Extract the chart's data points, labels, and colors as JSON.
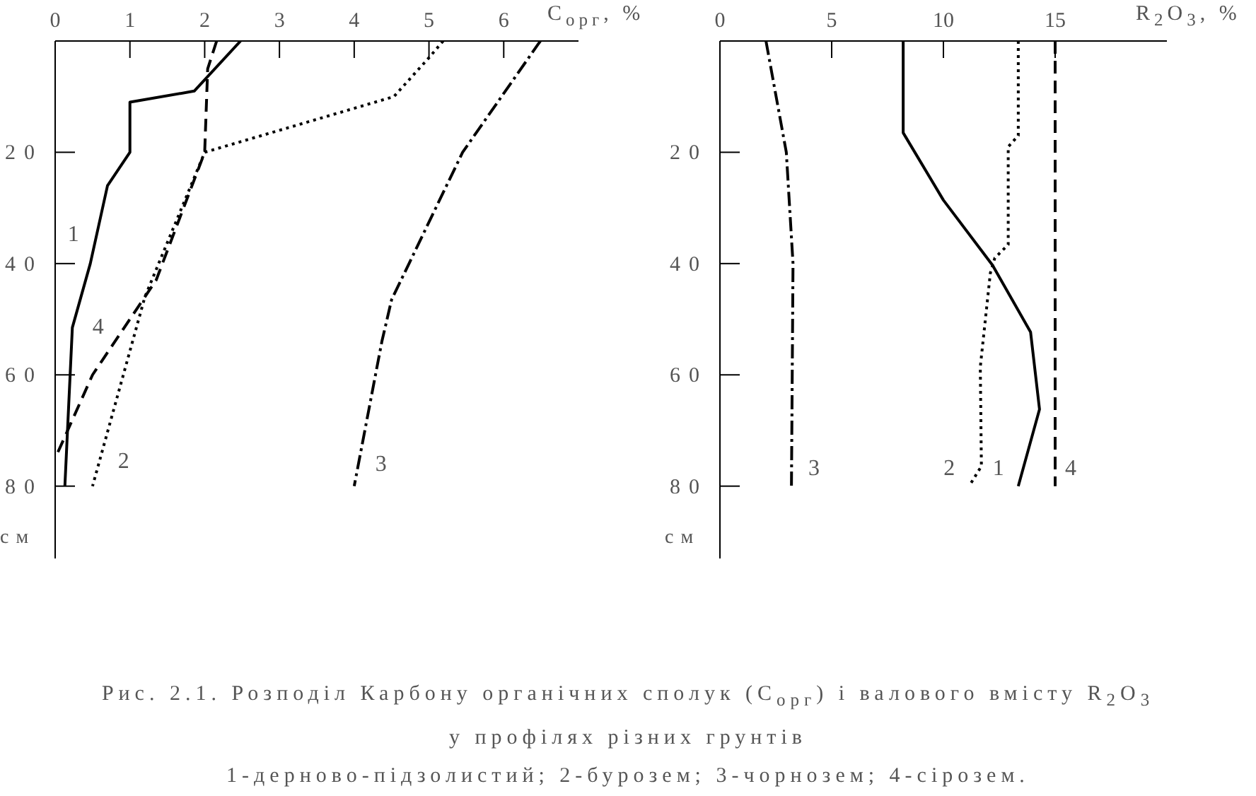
{
  "chart_data": [
    {
      "type": "line",
      "title": "Рис. 2.1. Розподіл Карбону органічних сполук (C$_{орг}$) і валового вмісту R$_{2}$O$_{3}$",
      "subtitle": "у профілях різних грунтів",
      "annotations": [
        "1-дерново-підзолистий; 2-бурозем; 3-чорнозем; 4-сірозем."
      ],
      "xlabel": "C$_{орг}$, %",
      "ylabel": "см",
      "xlim": [
        0,
        7
      ],
      "xticks": [
        0,
        1,
        2,
        3,
        4,
        5,
        6
      ],
      "ylim": [
        93,
        0
      ],
      "yticks": [
        20,
        40,
        60,
        80
      ],
      "series": [
        {
          "name": "1",
          "color": "#000000",
          "line_style": "solid",
          "x": [
            2.48,
            1.86,
            1.0,
            1.0,
            0.7,
            0.47,
            0.23,
            0.13
          ],
          "values": [
            0,
            9,
            11,
            20,
            26,
            40,
            51.5,
            80
          ]
        },
        {
          "name": "2",
          "color": "#000000",
          "line_style": "dotted",
          "x": [
            5.19,
            5.0,
            4.53,
            2.0,
            1.2,
            0.5
          ],
          "values": [
            0,
            3,
            10,
            20,
            46,
            80
          ]
        },
        {
          "name": "3",
          "color": "#000000",
          "line_style": "dashdot",
          "x": [
            6.49,
            5.45,
            4.5,
            4.37,
            4.0
          ],
          "values": [
            0,
            20,
            46.5,
            54,
            80
          ]
        },
        {
          "name": "4",
          "color": "#000000",
          "line_style": "dashed",
          "x": [
            2.16,
            2.04,
            2.0,
            1.35,
            0.5,
            0
          ],
          "values": [
            0,
            5,
            20,
            43,
            60,
            75
          ]
        }
      ]
    },
    {
      "type": "line",
      "xlabel": "R$_{2}$O$_{3}$, %",
      "ylabel": "см",
      "xlim": [
        0,
        20
      ],
      "xticks": [
        0,
        5,
        10,
        15
      ],
      "ylim": [
        93,
        0
      ],
      "yticks": [
        20,
        40,
        60,
        80
      ],
      "series": [
        {
          "name": "1",
          "color": "#000000",
          "line_style": "solid",
          "x": [
            8.2,
            8.2,
            10.0,
            12.2,
            13.9,
            14.3,
            13.35
          ],
          "values": [
            0,
            16.5,
            28.6,
            40.3,
            52.3,
            66.2,
            80
          ]
        },
        {
          "name": "2",
          "color": "#000000",
          "line_style": "dotted",
          "x": [
            13.35,
            13.35,
            12.9,
            12.9,
            12.3,
            12.1,
            11.65,
            11.7,
            11.15
          ],
          "values": [
            0,
            17,
            19,
            36.6,
            39,
            41.7,
            58.6,
            76.4,
            80
          ]
        },
        {
          "name": "3",
          "color": "#000000",
          "line_style": "dashdot",
          "x": [
            2.06,
            2.97,
            3.27,
            3.2
          ],
          "values": [
            0,
            20,
            40,
            80
          ]
        },
        {
          "name": "4",
          "color": "#000000",
          "line_style": "dashed",
          "x": [
            15.0,
            15.0,
            15.0
          ],
          "values": [
            0,
            40,
            80
          ]
        }
      ]
    }
  ]
}
